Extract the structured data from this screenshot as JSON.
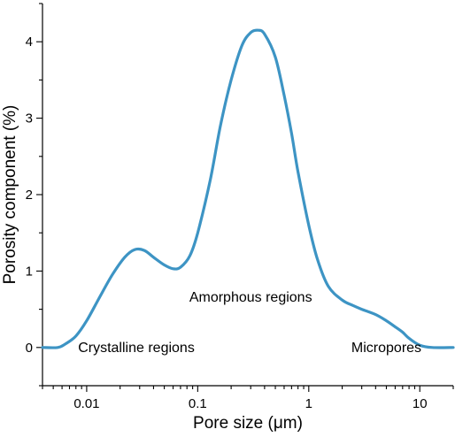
{
  "chart_data": {
    "type": "line",
    "title": "",
    "xlabel": "Pore size (μm)",
    "ylabel": "Porosity component (%)",
    "xscale": "log",
    "xlim": [
      0.004,
      20
    ],
    "ylim": [
      -0.5,
      4.5
    ],
    "grid": false,
    "legend": "none",
    "x_ticks": [
      0.01,
      0.1,
      1,
      10
    ],
    "x_tick_labels": [
      "0.01",
      "0.1",
      "1",
      "10"
    ],
    "y_ticks": [
      0,
      1,
      2,
      3,
      4
    ],
    "y_tick_labels": [
      "0",
      "1",
      "2",
      "3",
      "4"
    ],
    "line_color": "#3d94c4",
    "series": [
      {
        "x": [
          0.004,
          0.0055,
          0.0065,
          0.008,
          0.01,
          0.013,
          0.017,
          0.022,
          0.027,
          0.033,
          0.04,
          0.05,
          0.06,
          0.07,
          0.085,
          0.1,
          0.13,
          0.16,
          0.2,
          0.25,
          0.3,
          0.35,
          0.4,
          0.5,
          0.6,
          0.7,
          0.8,
          1.0,
          1.2,
          1.5,
          2.0,
          2.5,
          3.0,
          4.0,
          5.0,
          6.0,
          7.0,
          8.0,
          10.0,
          13.0,
          20.0
        ],
        "y": [
          0.0,
          0.0,
          0.05,
          0.15,
          0.35,
          0.65,
          0.95,
          1.18,
          1.28,
          1.27,
          1.18,
          1.08,
          1.03,
          1.05,
          1.2,
          1.5,
          2.2,
          2.9,
          3.5,
          3.95,
          4.12,
          4.15,
          4.1,
          3.8,
          3.3,
          2.8,
          2.3,
          1.6,
          1.15,
          0.8,
          0.62,
          0.55,
          0.5,
          0.43,
          0.35,
          0.27,
          0.2,
          0.12,
          0.03,
          0.0,
          0.0
        ]
      }
    ],
    "annotations": [
      {
        "text": "Crystalline regions",
        "x": 0.028,
        "y": -0.06
      },
      {
        "text": "Amorphous regions",
        "x": 0.3,
        "y": 0.6
      },
      {
        "text": "Micropores",
        "x": 5.0,
        "y": -0.06
      }
    ]
  }
}
